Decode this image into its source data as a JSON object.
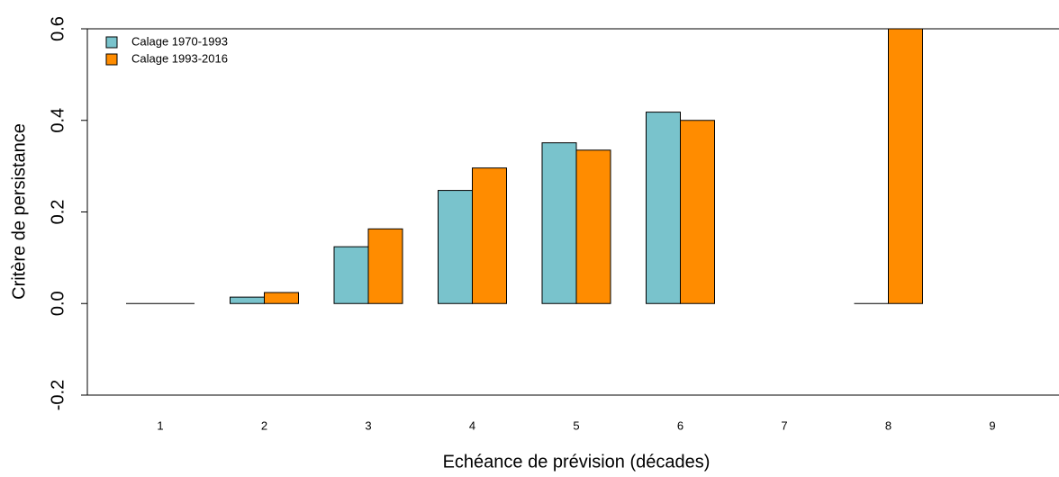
{
  "chart_data": {
    "type": "bar",
    "x_label": "Echéance de prévision (décades)",
    "y_label": "Critère de persistance",
    "categories": [
      "1",
      "2",
      "3",
      "4",
      "5",
      "6",
      "7",
      "8",
      "9"
    ],
    "series": [
      {
        "name": "Calage 1970-1993",
        "color": "#79c3cc",
        "values": [
          0,
          0.014,
          0.124,
          0.247,
          0.351,
          0.418,
          null,
          0,
          null
        ]
      },
      {
        "name": "Calage 1993-2016",
        "color": "#ff8c00",
        "values": [
          0,
          0.024,
          0.163,
          0.296,
          0.335,
          0.4,
          null,
          0.6,
          null
        ]
      }
    ],
    "ylim": [
      -0.2,
      0.6
    ],
    "yticks": [
      -0.2,
      {
        "value": 0,
        "label": "0.0"
      },
      0.2,
      0.4,
      0.6
    ],
    "legend": "top-left"
  }
}
